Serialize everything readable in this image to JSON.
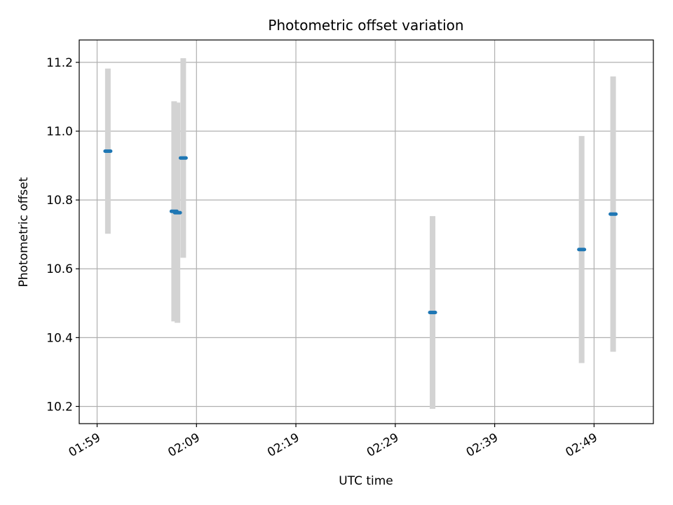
{
  "chart_data": {
    "type": "scatter",
    "title": "Photometric offset variation",
    "xlabel": "UTC time",
    "ylabel": "Photometric offset",
    "xlim": [
      "01:57:12",
      "02:54:58"
    ],
    "ylim": [
      10.15,
      11.265
    ],
    "grid": true,
    "x_ticks": [
      "01:59",
      "02:09",
      "02:19",
      "02:29",
      "02:39",
      "02:49"
    ],
    "y_ticks": [
      "10.2",
      "10.4",
      "10.6",
      "10.8",
      "11.0",
      "11.2"
    ],
    "points": [
      {
        "time": "02:00:05",
        "offset": 10.942,
        "error": 0.24
      },
      {
        "time": "02:06:45",
        "offset": 10.767,
        "error": 0.32
      },
      {
        "time": "02:07:05",
        "offset": 10.763,
        "error": 0.32
      },
      {
        "time": "02:07:40",
        "offset": 10.922,
        "error": 0.29
      },
      {
        "time": "02:32:45",
        "offset": 10.473,
        "error": 0.28
      },
      {
        "time": "02:47:45",
        "offset": 10.656,
        "error": 0.33
      },
      {
        "time": "02:50:55",
        "offset": 10.759,
        "error": 0.4
      }
    ],
    "marker_color": "#1f77b4",
    "errorbar_color": "#d3d3d3",
    "grid_color": "#b0b0b0"
  }
}
